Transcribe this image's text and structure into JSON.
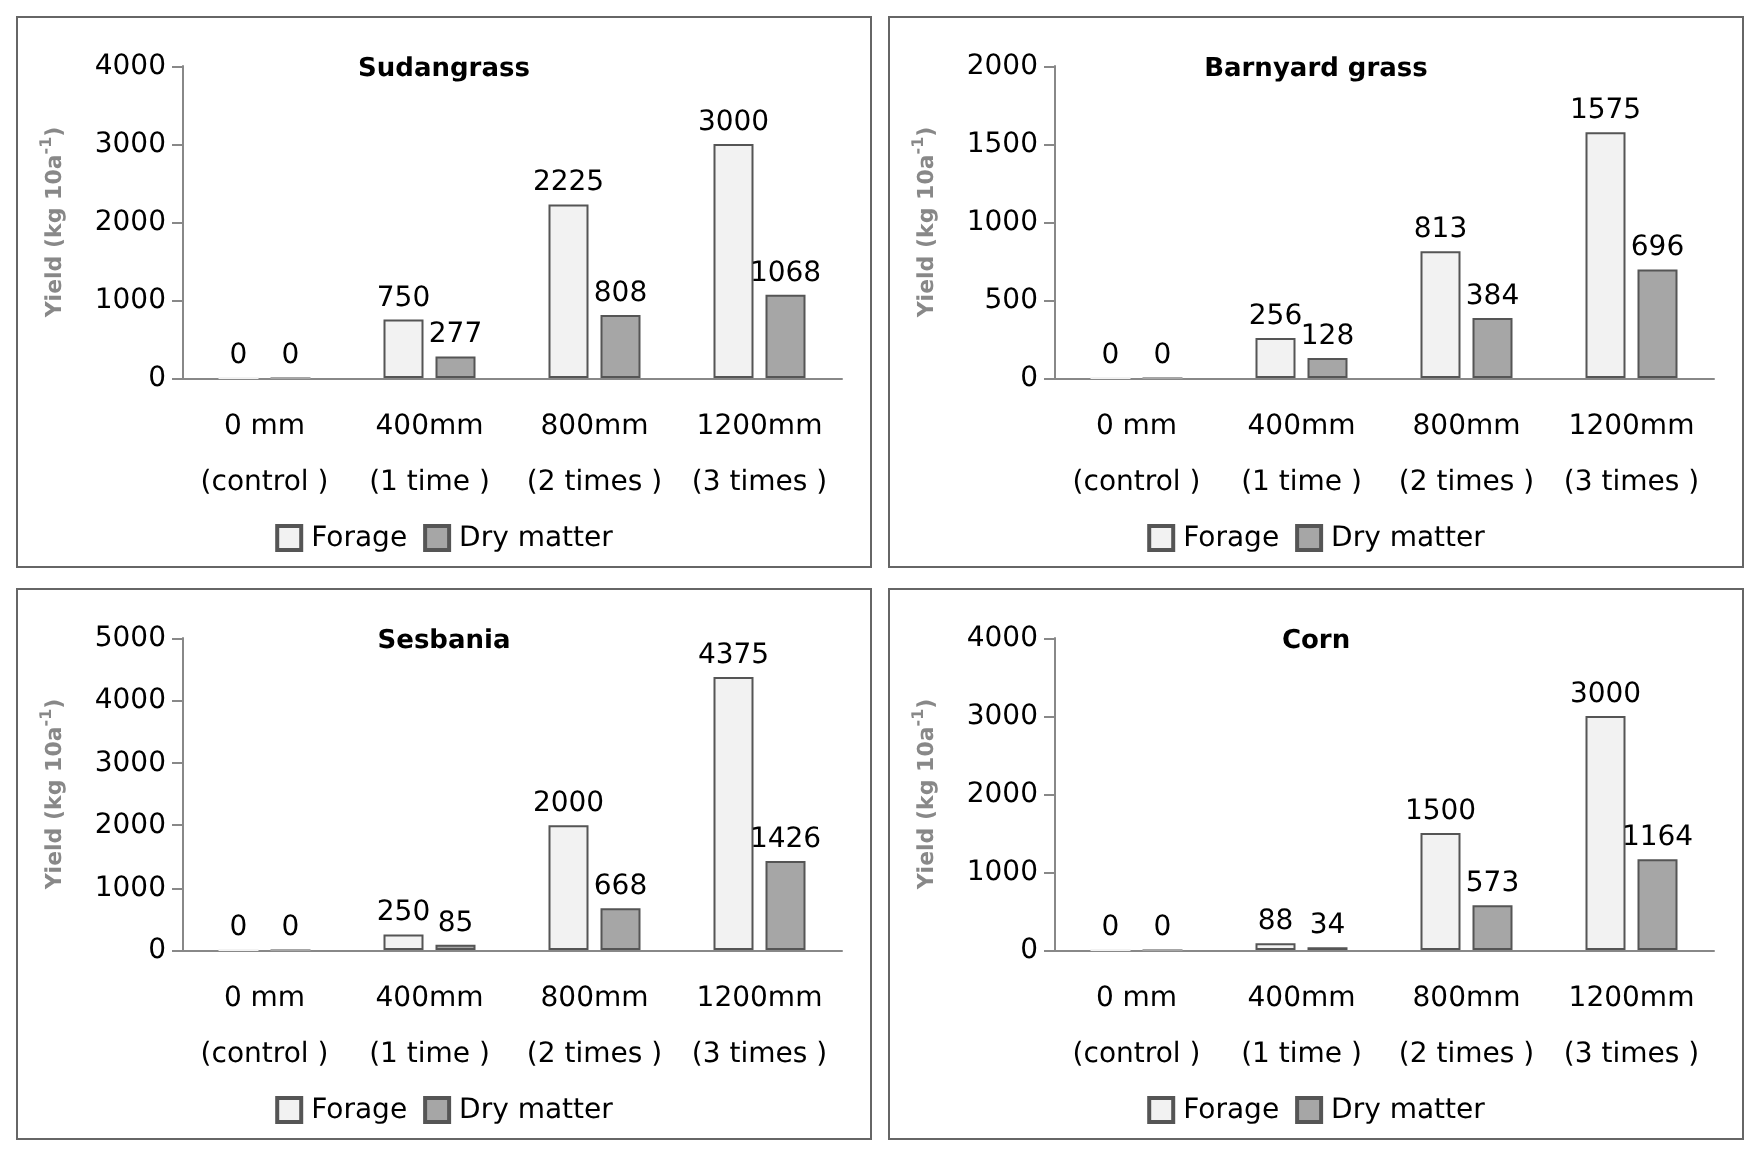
{
  "chart_data": [
    {
      "type": "bar",
      "title": "Sudangrass",
      "ylabel": "Yield (kg 10a$^{-1}$)",
      "categories": [
        "0 mm\n(control )",
        "400mm\n(1 time )",
        "800mm\n(2 times )",
        "1200mm\n(3 times )"
      ],
      "series": [
        {
          "name": "Forage",
          "color": "#f2f2f2",
          "values": [
            0,
            750,
            2225,
            3000
          ]
        },
        {
          "name": "Dry matter",
          "color": "#a6a6a6",
          "values": [
            0,
            277,
            808,
            1068
          ]
        }
      ],
      "ylim": [
        0,
        4000
      ],
      "yticks": [
        0,
        1000,
        2000,
        3000,
        4000
      ],
      "data_labels": true,
      "legend": "bottom",
      "grid": false
    },
    {
      "type": "bar",
      "title": "Barnyard grass",
      "ylabel": "Yield (kg 10a$^{-1}$)",
      "categories": [
        "0 mm\n(control )",
        "400mm\n(1 time )",
        "800mm\n(2 times )",
        "1200mm\n(3 times )"
      ],
      "series": [
        {
          "name": "Forage",
          "color": "#f2f2f2",
          "values": [
            0,
            256,
            813,
            1575
          ]
        },
        {
          "name": "Dry matter",
          "color": "#a6a6a6",
          "values": [
            0,
            128,
            384,
            696
          ]
        }
      ],
      "ylim": [
        0,
        2000
      ],
      "yticks": [
        0,
        500,
        1000,
        1500,
        2000
      ],
      "data_labels": true,
      "legend": "bottom",
      "grid": false
    },
    {
      "type": "bar",
      "title": "Sesbania",
      "ylabel": "Yield (kg 10a$^{-1}$)",
      "categories": [
        "0 mm\n(control )",
        "400mm\n(1 time )",
        "800mm\n(2 times )",
        "1200mm\n(3 times )"
      ],
      "series": [
        {
          "name": "Forage",
          "color": "#f2f2f2",
          "values": [
            0,
            250,
            2000,
            4375
          ]
        },
        {
          "name": "Dry matter",
          "color": "#a6a6a6",
          "values": [
            0,
            85,
            668,
            1426
          ]
        }
      ],
      "ylim": [
        0,
        5000
      ],
      "yticks": [
        0,
        1000,
        2000,
        3000,
        4000,
        5000
      ],
      "data_labels": true,
      "legend": "bottom",
      "grid": false
    },
    {
      "type": "bar",
      "title": "Corn",
      "ylabel": "Yield (kg 10a$^{-1}$)",
      "categories": [
        "0 mm\n(control )",
        "400mm\n(1 time )",
        "800mm\n(2 times )",
        "1200mm\n(3 times )"
      ],
      "series": [
        {
          "name": "Forage",
          "color": "#f2f2f2",
          "values": [
            0,
            88,
            1500,
            3000
          ]
        },
        {
          "name": "Dry matter",
          "color": "#a6a6a6",
          "values": [
            0,
            34,
            573,
            1164
          ]
        }
      ],
      "ylim": [
        0,
        4000
      ],
      "yticks": [
        0,
        1000,
        2000,
        3000,
        4000
      ],
      "data_labels": true,
      "legend": "bottom",
      "grid": false
    }
  ]
}
